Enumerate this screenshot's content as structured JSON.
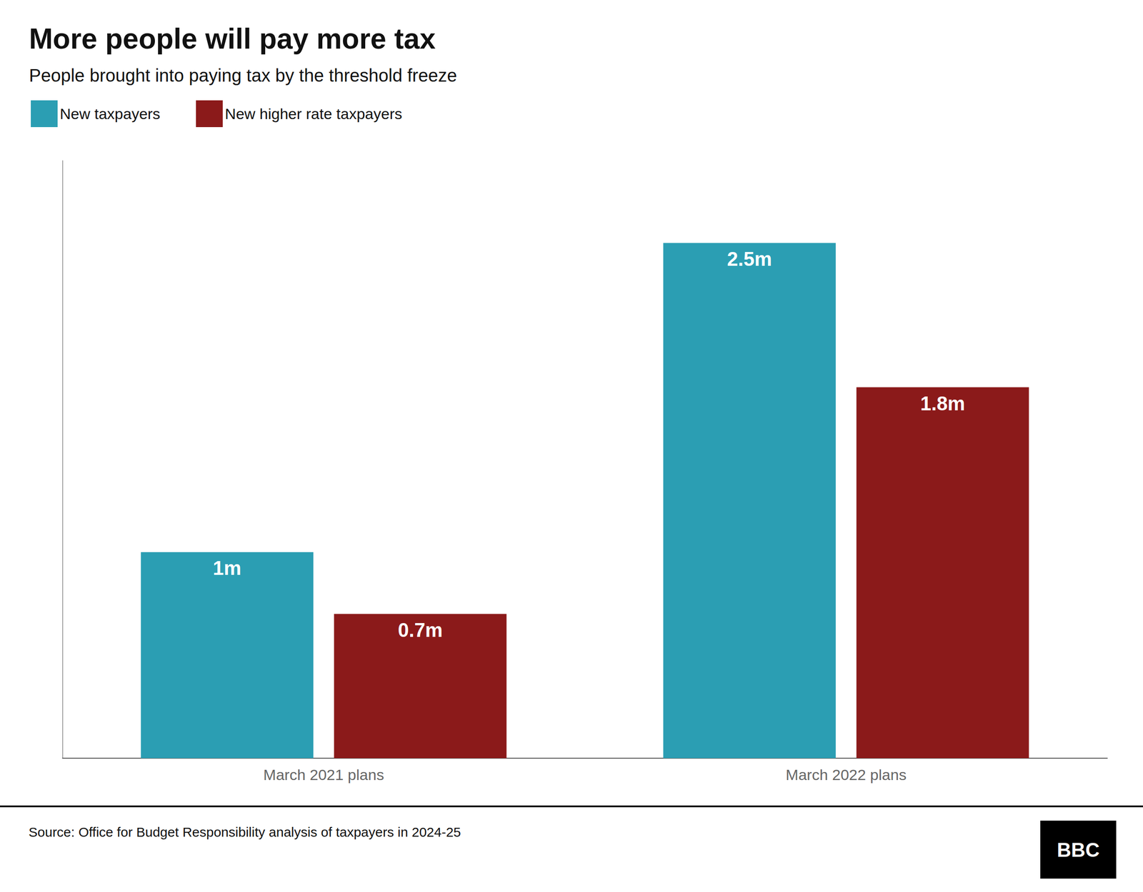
{
  "chart_data": {
    "type": "bar",
    "title": "More people will pay more tax",
    "subtitle": "People brought into paying tax by the threshold freeze",
    "categories": [
      "March 2021 plans",
      "March 2022 plans"
    ],
    "series": [
      {
        "name": "New taxpayers",
        "color": "#2B9EB3",
        "values": [
          1.0,
          2.5
        ],
        "value_labels": [
          "1m",
          "2.5m"
        ]
      },
      {
        "name": "New higher rate taxpayers",
        "color": "#8B1A1A",
        "values": [
          0.7,
          1.8
        ],
        "value_labels": [
          "0.7m",
          "1.8m"
        ]
      }
    ],
    "ylim": [
      0,
      2.9
    ],
    "tick_labels": "x",
    "grid": false,
    "legend": "upper left",
    "data_labels": true,
    "annotations": [
      "Source: Office for Budget Responsibility analysis of taxpayers in 2024-25",
      "BBC"
    ]
  }
}
